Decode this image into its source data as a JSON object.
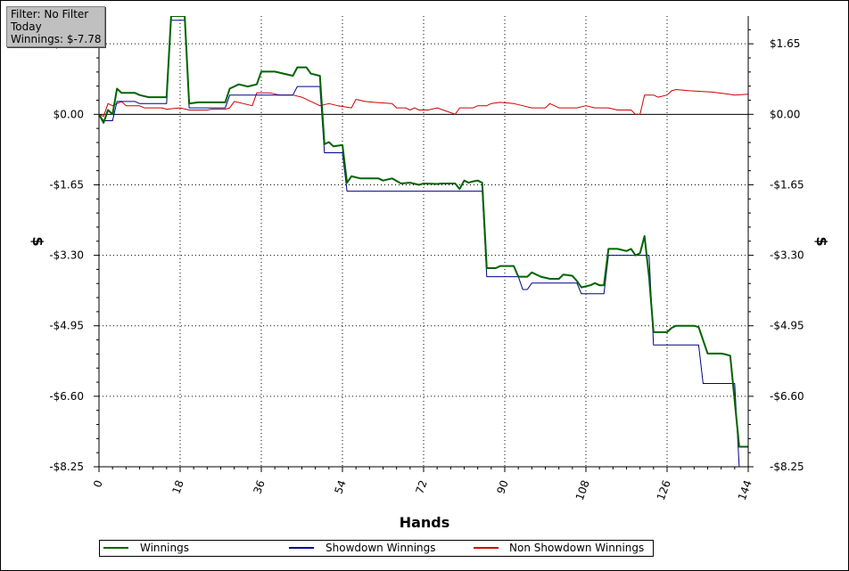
{
  "info": {
    "filter": "Filter: No Filter",
    "period": "Today",
    "winnings": "Winnings: $-7.78"
  },
  "chart_data": {
    "type": "line",
    "xlabel": "Hands",
    "ylabel_left": "$",
    "ylabel_right": "$",
    "xlim": [
      0,
      144
    ],
    "ylim": [
      -8.25,
      2.3
    ],
    "x_ticks": [
      0,
      18,
      36,
      54,
      72,
      90,
      108,
      126,
      144
    ],
    "x_tick_labels": [
      "0",
      "18",
      "36",
      "54",
      "72",
      "90",
      "108",
      "126",
      "144"
    ],
    "y_ticks": [
      1.65,
      0.0,
      -1.65,
      -3.3,
      -4.95,
      -6.6,
      -8.25
    ],
    "y_tick_labels": [
      "$1.65",
      "$0.00",
      "-$1.65",
      "-$3.30",
      "-$4.95",
      "-$6.60",
      "-$8.25"
    ],
    "grid": true,
    "legend_position": "bottom",
    "series": [
      {
        "name": "Winnings",
        "color": "#006400",
        "points": [
          [
            0,
            0
          ],
          [
            1,
            -0.2
          ],
          [
            2,
            0.1
          ],
          [
            3,
            0
          ],
          [
            4,
            0.6
          ],
          [
            5,
            0.5
          ],
          [
            8,
            0.5
          ],
          [
            9,
            0.45
          ],
          [
            11,
            0.4
          ],
          [
            15,
            0.4
          ],
          [
            16,
            2.3
          ],
          [
            19,
            2.3
          ],
          [
            20,
            0.25
          ],
          [
            22,
            0.28
          ],
          [
            28,
            0.28
          ],
          [
            29,
            0.6
          ],
          [
            31,
            0.7
          ],
          [
            33,
            0.65
          ],
          [
            35,
            0.7
          ],
          [
            36,
            1.0
          ],
          [
            39,
            1.0
          ],
          [
            43,
            0.9
          ],
          [
            44,
            1.1
          ],
          [
            46,
            1.1
          ],
          [
            47,
            0.95
          ],
          [
            49,
            0.9
          ],
          [
            50,
            -0.7
          ],
          [
            51,
            -0.65
          ],
          [
            52,
            -0.75
          ],
          [
            54,
            -0.72
          ],
          [
            55,
            -1.6
          ],
          [
            56,
            -1.45
          ],
          [
            58,
            -1.5
          ],
          [
            62,
            -1.5
          ],
          [
            63,
            -1.55
          ],
          [
            65,
            -1.5
          ],
          [
            67,
            -1.62
          ],
          [
            69,
            -1.6
          ],
          [
            71,
            -1.65
          ],
          [
            72,
            -1.62
          ],
          [
            75,
            -1.63
          ],
          [
            76,
            -1.62
          ],
          [
            79,
            -1.62
          ],
          [
            80,
            -1.75
          ],
          [
            81,
            -1.55
          ],
          [
            82,
            -1.6
          ],
          [
            83,
            -1.57
          ],
          [
            84,
            -1.55
          ],
          [
            85,
            -1.6
          ],
          [
            86,
            -3.6
          ],
          [
            88,
            -3.6
          ],
          [
            89,
            -3.55
          ],
          [
            92,
            -3.55
          ],
          [
            93,
            -3.8
          ],
          [
            95,
            -3.8
          ],
          [
            96,
            -3.7
          ],
          [
            98,
            -3.8
          ],
          [
            100,
            -3.85
          ],
          [
            102,
            -3.85
          ],
          [
            103,
            -3.75
          ],
          [
            105,
            -3.78
          ],
          [
            106,
            -3.9
          ],
          [
            107,
            -4.05
          ],
          [
            109,
            -4.0
          ],
          [
            110,
            -3.95
          ],
          [
            111,
            -4.0
          ],
          [
            112,
            -4.0
          ],
          [
            113,
            -3.15
          ],
          [
            115,
            -3.15
          ],
          [
            117,
            -3.2
          ],
          [
            118,
            -3.15
          ],
          [
            119,
            -3.3
          ],
          [
            120,
            -3.25
          ],
          [
            121,
            -2.85
          ],
          [
            122,
            -3.8
          ],
          [
            123,
            -5.1
          ],
          [
            126,
            -5.1
          ],
          [
            127,
            -5.0
          ],
          [
            128,
            -4.95
          ],
          [
            132,
            -4.95
          ],
          [
            133,
            -4.98
          ],
          [
            135,
            -5.6
          ],
          [
            138,
            -5.6
          ],
          [
            139,
            -5.62
          ],
          [
            140,
            -5.65
          ],
          [
            142,
            -7.78
          ],
          [
            144,
            -7.78
          ]
        ]
      },
      {
        "name": "Showdown Winnings",
        "color": "#00008b",
        "points": [
          [
            0,
            0
          ],
          [
            1,
            -0.15
          ],
          [
            3,
            -0.15
          ],
          [
            4,
            0.3
          ],
          [
            8,
            0.3
          ],
          [
            9,
            0.25
          ],
          [
            15,
            0.25
          ],
          [
            16,
            2.2
          ],
          [
            19,
            2.2
          ],
          [
            20,
            0.15
          ],
          [
            28,
            0.15
          ],
          [
            29,
            0.45
          ],
          [
            36,
            0.45
          ],
          [
            37,
            0.45
          ],
          [
            43,
            0.45
          ],
          [
            44,
            0.65
          ],
          [
            49,
            0.65
          ],
          [
            50,
            -0.9
          ],
          [
            54,
            -0.9
          ],
          [
            55,
            -1.8
          ],
          [
            85,
            -1.8
          ],
          [
            86,
            -3.8
          ],
          [
            93,
            -3.8
          ],
          [
            94,
            -4.1
          ],
          [
            95,
            -4.1
          ],
          [
            96,
            -3.95
          ],
          [
            106,
            -3.95
          ],
          [
            107,
            -4.2
          ],
          [
            112,
            -4.2
          ],
          [
            113,
            -3.3
          ],
          [
            122,
            -3.3
          ],
          [
            123,
            -5.4
          ],
          [
            132,
            -5.4
          ],
          [
            133,
            -5.4
          ],
          [
            134,
            -6.3
          ],
          [
            140,
            -6.3
          ],
          [
            141,
            -6.3
          ],
          [
            142,
            -8.25
          ]
        ]
      },
      {
        "name": "Non Showdown Winnings",
        "color": "#cc0000",
        "points": [
          [
            0,
            0
          ],
          [
            1,
            -0.05
          ],
          [
            2,
            0.25
          ],
          [
            3,
            0.2
          ],
          [
            5,
            0.3
          ],
          [
            6,
            0.2
          ],
          [
            9,
            0.2
          ],
          [
            10,
            0.15
          ],
          [
            14,
            0.15
          ],
          [
            15,
            0.12
          ],
          [
            18,
            0.15
          ],
          [
            20,
            0.1
          ],
          [
            24,
            0.1
          ],
          [
            25,
            0.12
          ],
          [
            28,
            0.12
          ],
          [
            29,
            0.15
          ],
          [
            30,
            0.3
          ],
          [
            32,
            0.25
          ],
          [
            34,
            0.2
          ],
          [
            35,
            0.5
          ],
          [
            38,
            0.5
          ],
          [
            40,
            0.45
          ],
          [
            43,
            0.45
          ],
          [
            45,
            0.4
          ],
          [
            49,
            0.2
          ],
          [
            51,
            0.25
          ],
          [
            53,
            0.2
          ],
          [
            56,
            0.15
          ],
          [
            57,
            0.35
          ],
          [
            59,
            0.3
          ],
          [
            61,
            0.28
          ],
          [
            65,
            0.25
          ],
          [
            66,
            0.15
          ],
          [
            68,
            0.15
          ],
          [
            69,
            0.1
          ],
          [
            70,
            0.15
          ],
          [
            71,
            0.1
          ],
          [
            73,
            0.1
          ],
          [
            75,
            0.15
          ],
          [
            79,
            0.0
          ],
          [
            80,
            0.15
          ],
          [
            83,
            0.15
          ],
          [
            84,
            0.2
          ],
          [
            86,
            0.2
          ],
          [
            87,
            0.25
          ],
          [
            89,
            0.28
          ],
          [
            92,
            0.25
          ],
          [
            94,
            0.2
          ],
          [
            96,
            0.15
          ],
          [
            99,
            0.15
          ],
          [
            100,
            0.25
          ],
          [
            102,
            0.15
          ],
          [
            104,
            0.15
          ],
          [
            106,
            0.15
          ],
          [
            108,
            0.2
          ],
          [
            110,
            0.15
          ],
          [
            113,
            0.15
          ],
          [
            115,
            0.1
          ],
          [
            118,
            0.1
          ],
          [
            119,
            0.0
          ],
          [
            120,
            0.0
          ],
          [
            121,
            0.45
          ],
          [
            123,
            0.45
          ],
          [
            124,
            0.4
          ],
          [
            126,
            0.45
          ],
          [
            127,
            0.55
          ],
          [
            128,
            0.58
          ],
          [
            131,
            0.55
          ],
          [
            136,
            0.52
          ],
          [
            139,
            0.48
          ],
          [
            141,
            0.45
          ],
          [
            144,
            0.47
          ]
        ]
      }
    ]
  }
}
